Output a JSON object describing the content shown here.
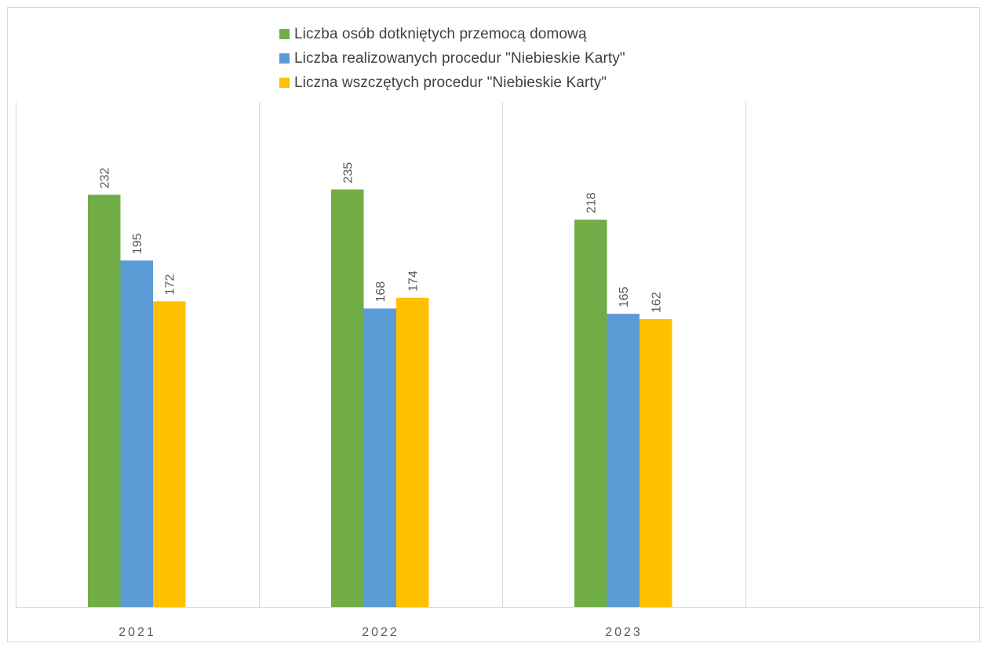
{
  "chart_data": {
    "type": "bar",
    "categories": [
      "2021",
      "2022",
      "2023"
    ],
    "series": [
      {
        "name": "Liczba osób dotkniętych przemocą domową",
        "values": [
          232,
          235,
          218
        ],
        "color": "#70ad47"
      },
      {
        "name": "Liczba realizowanych procedur \"Niebieskie Karty\"",
        "values": [
          195,
          168,
          165
        ],
        "color": "#5b9bd5"
      },
      {
        "name": "Liczna wszczętych procedur \"Niebieskie Karty\"",
        "values": [
          172,
          174,
          162
        ],
        "color": "#ffc000"
      }
    ],
    "ylim": [
      0,
      300
    ],
    "grid": "vertical category separators",
    "legend": "top",
    "data_labels": "rotated above bars"
  }
}
